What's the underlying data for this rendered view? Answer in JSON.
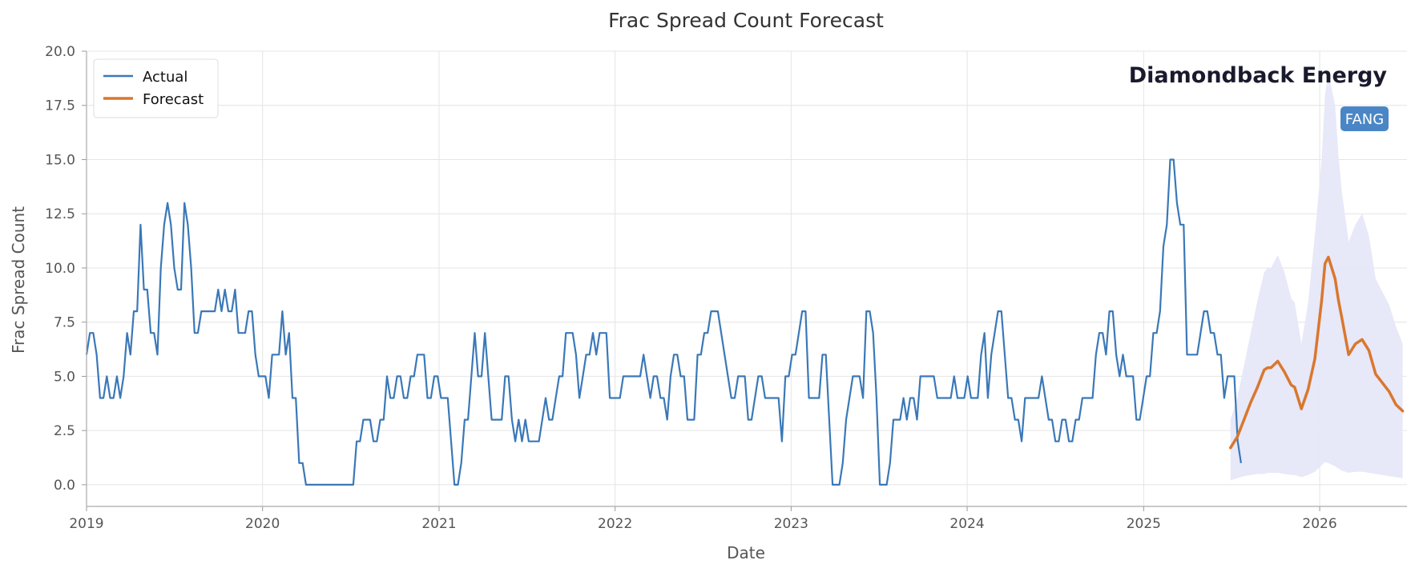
{
  "chart_data": {
    "type": "line",
    "title": "Frac Spread Count Forecast",
    "xlabel": "Date",
    "ylabel": "Frac Spread Count",
    "company": "Diamondback Energy",
    "ticker": "FANG",
    "xlim": [
      "2019-01-01",
      "2026-07-01"
    ],
    "ylim": [
      -1.0,
      20.0
    ],
    "x_ticks": [
      "2019",
      "2020",
      "2021",
      "2022",
      "2023",
      "2024",
      "2025",
      "2026"
    ],
    "y_ticks": [
      "0.0",
      "2.5",
      "5.0",
      "7.5",
      "10.0",
      "12.5",
      "15.0",
      "17.5",
      "20.0"
    ],
    "grid": true,
    "legend_position": "top-left",
    "colors": {
      "actual": "#3a78b8",
      "forecast": "#d9772e",
      "band": "#e6e7f8",
      "ticker_bg": "#4a86c5",
      "company": "#1a1a2e"
    },
    "series": [
      {
        "name": "Actual",
        "start_date": "2019-01-01",
        "interval_weeks": 1,
        "values": [
          6,
          7,
          7,
          6,
          4,
          4,
          5,
          4,
          4,
          5,
          4,
          5,
          7,
          6,
          8,
          8,
          12,
          9,
          9,
          7,
          7,
          6,
          10,
          12,
          13,
          12,
          10,
          9,
          9,
          13,
          12,
          10,
          7,
          7,
          8,
          8,
          8,
          8,
          8,
          9,
          8,
          9,
          8,
          8,
          9,
          7,
          7,
          7,
          8,
          8,
          6,
          5,
          5,
          5,
          4,
          6,
          6,
          6,
          8,
          6,
          7,
          4,
          4,
          1,
          1,
          0,
          0,
          0,
          0,
          0,
          0,
          0,
          0,
          0,
          0,
          0,
          0,
          0,
          0,
          0,
          2,
          2,
          3,
          3,
          3,
          2,
          2,
          3,
          3,
          5,
          4,
          4,
          5,
          5,
          4,
          4,
          5,
          5,
          6,
          6,
          6,
          4,
          4,
          5,
          5,
          4,
          4,
          4,
          2,
          0,
          0,
          1,
          3,
          3,
          5,
          7,
          5,
          5,
          7,
          5,
          3,
          3,
          3,
          3,
          5,
          5,
          3,
          2,
          3,
          2,
          3,
          2,
          2,
          2,
          2,
          3,
          4,
          3,
          3,
          4,
          5,
          5,
          7,
          7,
          7,
          6,
          4,
          5,
          6,
          6,
          7,
          6,
          7,
          7,
          7,
          4,
          4,
          4,
          4,
          5,
          5,
          5,
          5,
          5,
          5,
          6,
          5,
          4,
          5,
          5,
          4,
          4,
          3,
          5,
          6,
          6,
          5,
          5,
          3,
          3,
          3,
          6,
          6,
          7,
          7,
          8,
          8,
          8,
          7,
          6,
          5,
          4,
          4,
          5,
          5,
          5,
          3,
          3,
          4,
          5,
          5,
          4,
          4,
          4,
          4,
          4,
          2,
          5,
          5,
          6,
          6,
          7,
          8,
          8,
          4,
          4,
          4,
          4,
          6,
          6,
          3,
          0,
          0,
          0,
          1,
          3,
          4,
          5,
          5,
          5,
          4,
          8,
          8,
          7,
          4,
          0,
          0,
          0,
          1,
          3,
          3,
          3,
          4,
          3,
          4,
          4,
          3,
          5,
          5,
          5,
          5,
          5,
          4,
          4,
          4,
          4,
          4,
          5,
          4,
          4,
          4,
          5,
          4,
          4,
          4,
          6,
          7,
          4,
          6,
          7,
          8,
          8,
          6,
          4,
          4,
          3,
          3,
          2,
          4,
          4,
          4,
          4,
          4,
          5,
          4,
          3,
          3,
          2,
          2,
          3,
          3,
          2,
          2,
          3,
          3,
          4,
          4,
          4,
          4,
          6,
          7,
          7,
          6,
          8,
          8,
          6,
          5,
          6,
          5,
          5,
          5,
          3,
          3,
          4,
          5,
          5,
          7,
          7,
          8,
          11,
          12,
          15,
          15,
          13,
          12,
          12,
          6,
          6,
          6,
          6,
          7,
          8,
          8,
          7,
          7,
          6,
          6,
          4,
          5,
          5,
          5,
          2,
          1
        ]
      },
      {
        "name": "Forecast",
        "dates": [
          "2025-06-30",
          "2025-07-14",
          "2025-07-28",
          "2025-08-11",
          "2025-08-25",
          "2025-09-08",
          "2025-09-15",
          "2025-09-22",
          "2025-10-06",
          "2025-10-20",
          "2025-11-03",
          "2025-11-10",
          "2025-11-24",
          "2025-12-08",
          "2025-12-22",
          "2026-01-05",
          "2026-01-12",
          "2026-01-19",
          "2026-02-02",
          "2026-02-09",
          "2026-02-16",
          "2026-03-02",
          "2026-03-16",
          "2026-03-30",
          "2026-04-13",
          "2026-04-27",
          "2026-05-11",
          "2026-05-25",
          "2026-06-08",
          "2026-06-22"
        ],
        "values": [
          1.7,
          2.2,
          3.0,
          3.8,
          4.5,
          5.3,
          5.4,
          5.4,
          5.7,
          5.2,
          4.6,
          4.5,
          3.5,
          4.4,
          5.8,
          8.5,
          10.2,
          10.5,
          9.5,
          8.5,
          7.7,
          6.0,
          6.5,
          6.7,
          6.2,
          5.1,
          4.7,
          4.3,
          3.7,
          3.4
        ],
        "band_lower": [
          0.2,
          0.3,
          0.4,
          0.45,
          0.5,
          0.5,
          0.55,
          0.55,
          0.55,
          0.5,
          0.45,
          0.45,
          0.35,
          0.45,
          0.6,
          0.9,
          1.05,
          1.0,
          0.85,
          0.75,
          0.65,
          0.55,
          0.6,
          0.6,
          0.55,
          0.5,
          0.45,
          0.4,
          0.35,
          0.3
        ],
        "band_upper": [
          3.0,
          4.0,
          5.5,
          7.0,
          8.5,
          9.8,
          10.0,
          10.0,
          10.6,
          9.8,
          8.6,
          8.4,
          6.5,
          8.4,
          11.5,
          15.0,
          18.0,
          19.0,
          17.5,
          15.2,
          13.5,
          11.2,
          12.0,
          12.5,
          11.5,
          9.5,
          8.9,
          8.3,
          7.3,
          6.5
        ]
      }
    ]
  }
}
